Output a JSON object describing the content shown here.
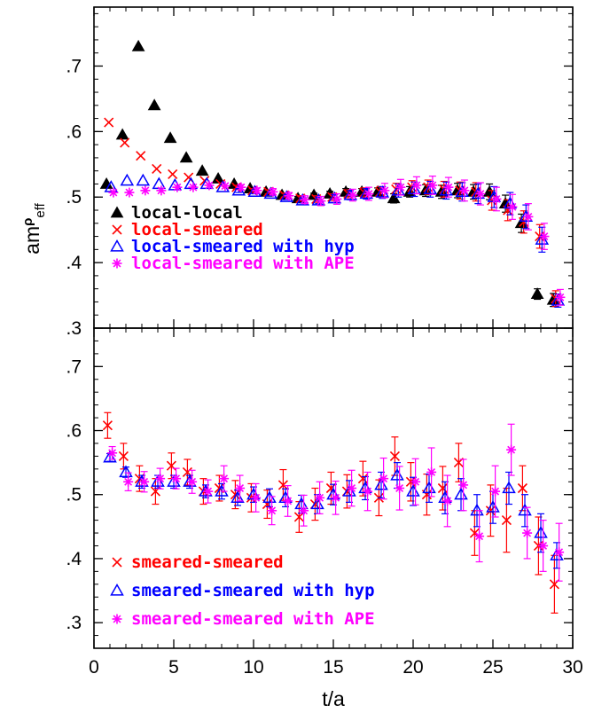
{
  "chart_data": [
    {
      "type": "scatter",
      "panel": "top",
      "xlabel": "",
      "ylabel": "amρeff",
      "ylabel_parts": {
        "base": "am",
        "sup": "ρ",
        "sub": "eff"
      },
      "xlim": [
        0,
        30
      ],
      "ylim": [
        0.3,
        0.79
      ],
      "xticks": [
        0,
        5,
        10,
        15,
        20,
        25,
        30
      ],
      "yticks": [
        0.3,
        0.4,
        0.5,
        0.6,
        0.7
      ],
      "ytick_labels": [
        ".3",
        ".4",
        ".5",
        ".6",
        ".7"
      ],
      "legend_position": "lower-left",
      "grid": false,
      "series": [
        {
          "name": "local-local",
          "color": "#000000",
          "marker": "filled-triangle",
          "x": [
            1,
            2,
            3,
            4,
            5,
            6,
            7,
            8,
            9,
            10,
            11,
            12,
            13,
            14,
            15,
            16,
            17,
            18,
            19,
            20,
            21,
            22,
            23,
            24,
            25,
            26,
            27,
            28,
            29
          ],
          "y": [
            0.52,
            0.595,
            0.73,
            0.64,
            0.59,
            0.56,
            0.54,
            0.528,
            0.52,
            0.513,
            0.508,
            0.503,
            0.498,
            0.503,
            0.505,
            0.508,
            0.508,
            0.508,
            0.498,
            0.508,
            0.51,
            0.508,
            0.51,
            0.508,
            0.508,
            0.49,
            0.46,
            0.352,
            0.343
          ],
          "err": [
            0,
            0,
            0,
            0,
            0,
            0,
            0,
            0,
            0,
            0,
            0,
            0,
            0.003,
            0.003,
            0.004,
            0.005,
            0.005,
            0.006,
            0.007,
            0.008,
            0.009,
            0.01,
            0.011,
            0.011,
            0.012,
            0.013,
            0.014,
            0.008,
            0.01
          ]
        },
        {
          "name": "local-smeared",
          "color": "#ff0000",
          "marker": "x",
          "x": [
            1,
            2,
            3,
            4,
            5,
            6,
            7,
            8,
            9,
            10,
            11,
            12,
            13,
            14,
            15,
            16,
            17,
            18,
            19,
            20,
            21,
            22,
            23,
            24,
            25,
            26,
            27,
            28,
            29
          ],
          "y": [
            0.614,
            0.583,
            0.563,
            0.543,
            0.535,
            0.53,
            0.525,
            0.52,
            0.515,
            0.51,
            0.508,
            0.503,
            0.498,
            0.497,
            0.5,
            0.505,
            0.507,
            0.508,
            0.512,
            0.515,
            0.515,
            0.512,
            0.51,
            0.508,
            0.495,
            0.48,
            0.462,
            0.44,
            0.345
          ],
          "err": [
            0,
            0,
            0,
            0,
            0,
            0,
            0,
            0,
            0.003,
            0.003,
            0.003,
            0.003,
            0.004,
            0.005,
            0.005,
            0.006,
            0.007,
            0.008,
            0.009,
            0.01,
            0.011,
            0.012,
            0.013,
            0.014,
            0.015,
            0.016,
            0.017,
            0.018,
            0.012
          ]
        },
        {
          "name": "local-smeared with hyp",
          "color": "#0000ff",
          "marker": "open-triangle",
          "x": [
            1,
            2,
            3,
            4,
            5,
            6,
            7,
            8,
            9,
            10,
            11,
            12,
            13,
            14,
            15,
            16,
            17,
            18,
            19,
            20,
            21,
            22,
            23,
            24,
            25,
            26,
            27,
            28,
            29
          ],
          "y": [
            0.515,
            0.525,
            0.525,
            0.52,
            0.518,
            0.52,
            0.52,
            0.515,
            0.51,
            0.508,
            0.505,
            0.5,
            0.495,
            0.495,
            0.498,
            0.503,
            0.505,
            0.507,
            0.51,
            0.512,
            0.512,
            0.51,
            0.508,
            0.505,
            0.5,
            0.49,
            0.47,
            0.435,
            0.342
          ],
          "err": [
            0,
            0,
            0,
            0,
            0,
            0,
            0,
            0,
            0.003,
            0.003,
            0.003,
            0.004,
            0.004,
            0.005,
            0.006,
            0.007,
            0.008,
            0.009,
            0.01,
            0.011,
            0.012,
            0.013,
            0.014,
            0.015,
            0.016,
            0.017,
            0.018,
            0.019,
            0.01
          ]
        },
        {
          "name": "local-smeared with APE",
          "color": "#ff00ff",
          "marker": "asterisk",
          "x": [
            1,
            2,
            3,
            4,
            5,
            6,
            7,
            8,
            9,
            10,
            11,
            12,
            13,
            14,
            15,
            16,
            17,
            18,
            19,
            20,
            21,
            22,
            23,
            24,
            25,
            26,
            27,
            28,
            29
          ],
          "y": [
            0.507,
            0.507,
            0.51,
            0.51,
            0.515,
            0.515,
            0.518,
            0.517,
            0.515,
            0.51,
            0.508,
            0.502,
            0.496,
            0.494,
            0.497,
            0.503,
            0.505,
            0.51,
            0.515,
            0.518,
            0.518,
            0.515,
            0.51,
            0.505,
            0.497,
            0.485,
            0.47,
            0.44,
            0.347
          ],
          "err": [
            0,
            0,
            0,
            0,
            0,
            0,
            0,
            0,
            0.004,
            0.004,
            0.005,
            0.005,
            0.006,
            0.007,
            0.008,
            0.009,
            0.01,
            0.011,
            0.012,
            0.013,
            0.014,
            0.015,
            0.016,
            0.017,
            0.018,
            0.019,
            0.02,
            0.02,
            0.012
          ]
        }
      ]
    },
    {
      "type": "scatter",
      "panel": "bottom",
      "xlabel": "t/a",
      "ylabel": "",
      "xlim": [
        0,
        30
      ],
      "ylim": [
        0.26,
        0.76
      ],
      "xticks": [
        0,
        5,
        10,
        15,
        20,
        25,
        30
      ],
      "xtick_labels": [
        "0",
        "5",
        "10",
        "15",
        "20",
        "25",
        "30"
      ],
      "yticks": [
        0.3,
        0.4,
        0.5,
        0.6,
        0.7
      ],
      "ytick_labels": [
        ".3",
        ".4",
        ".5",
        ".6",
        ".7"
      ],
      "legend_position": "lower-left",
      "grid": false,
      "series": [
        {
          "name": "smeared-smeared",
          "color": "#ff0000",
          "marker": "x",
          "x": [
            1,
            2,
            3,
            4,
            5,
            6,
            7,
            8,
            9,
            10,
            11,
            12,
            13,
            14,
            15,
            16,
            17,
            18,
            19,
            20,
            21,
            22,
            23,
            24,
            25,
            26,
            27,
            28,
            29
          ],
          "y": [
            0.608,
            0.56,
            0.525,
            0.505,
            0.545,
            0.535,
            0.505,
            0.51,
            0.5,
            0.495,
            0.485,
            0.515,
            0.465,
            0.485,
            0.51,
            0.505,
            0.525,
            0.495,
            0.56,
            0.52,
            0.5,
            0.51,
            0.55,
            0.44,
            0.475,
            0.46,
            0.51,
            0.42,
            0.36
          ],
          "err": [
            0.02,
            0.02,
            0.02,
            0.02,
            0.02,
            0.02,
            0.02,
            0.02,
            0.022,
            0.022,
            0.022,
            0.024,
            0.024,
            0.025,
            0.025,
            0.026,
            0.027,
            0.028,
            0.03,
            0.03,
            0.032,
            0.034,
            0.03,
            0.035,
            0.04,
            0.05,
            0.035,
            0.045,
            0.045
          ]
        },
        {
          "name": "smeared-smeared with hyp",
          "color": "#0000ff",
          "marker": "open-triangle",
          "x": [
            1,
            2,
            3,
            4,
            5,
            6,
            7,
            8,
            9,
            10,
            11,
            12,
            13,
            14,
            15,
            16,
            17,
            18,
            19,
            20,
            21,
            22,
            23,
            24,
            25,
            26,
            27,
            28,
            29
          ],
          "y": [
            0.558,
            0.535,
            0.52,
            0.52,
            0.52,
            0.52,
            0.505,
            0.505,
            0.495,
            0.5,
            0.495,
            0.495,
            0.485,
            0.485,
            0.5,
            0.505,
            0.51,
            0.515,
            0.53,
            0.505,
            0.51,
            0.495,
            0.5,
            0.475,
            0.48,
            0.51,
            0.475,
            0.44,
            0.405
          ],
          "err": [
            0.006,
            0.008,
            0.01,
            0.01,
            0.01,
            0.01,
            0.01,
            0.012,
            0.012,
            0.012,
            0.014,
            0.014,
            0.014,
            0.015,
            0.016,
            0.017,
            0.018,
            0.02,
            0.02,
            0.022,
            0.022,
            0.025,
            0.025,
            0.025,
            0.025,
            0.025,
            0.025,
            0.03,
            0.02
          ]
        },
        {
          "name": "smeared-smeared with APE",
          "color": "#ff00ff",
          "marker": "asterisk",
          "x": [
            1,
            2,
            3,
            4,
            5,
            6,
            7,
            8,
            9,
            10,
            11,
            12,
            13,
            14,
            15,
            16,
            17,
            18,
            19,
            20,
            21,
            22,
            23,
            24,
            25,
            26,
            27,
            28,
            29
          ],
          "y": [
            0.565,
            0.52,
            0.52,
            0.525,
            0.525,
            0.52,
            0.505,
            0.525,
            0.51,
            0.495,
            0.475,
            0.49,
            0.475,
            0.495,
            0.495,
            0.51,
            0.505,
            0.525,
            0.51,
            0.52,
            0.535,
            0.49,
            0.515,
            0.435,
            0.505,
            0.57,
            0.44,
            0.42,
            0.41
          ],
          "err": [
            0.01,
            0.014,
            0.016,
            0.016,
            0.016,
            0.018,
            0.018,
            0.02,
            0.02,
            0.022,
            0.022,
            0.024,
            0.024,
            0.025,
            0.026,
            0.028,
            0.03,
            0.032,
            0.034,
            0.036,
            0.038,
            0.04,
            0.04,
            0.04,
            0.04,
            0.04,
            0.04,
            0.04,
            0.045
          ]
        }
      ]
    }
  ]
}
